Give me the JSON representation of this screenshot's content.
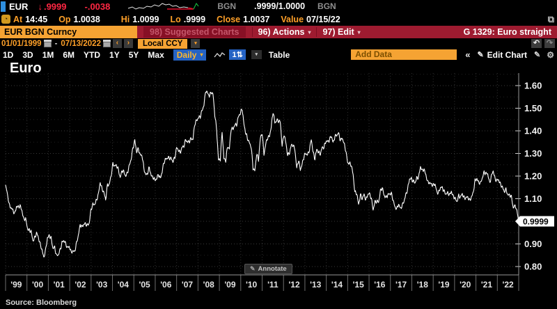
{
  "ticker": {
    "symbol": "EUR",
    "direction_arrow": "↓",
    "last": ".9999",
    "change": "-.0038",
    "feed": "BGN",
    "bid_ask": ".9999/1.0000",
    "feed2": "BGN",
    "at_label": "At",
    "time": "14:45",
    "open_label": "Op",
    "open": "1.0038",
    "high_label": "Hi",
    "high": "1.0099",
    "low_label": "Lo",
    "low": ".9999",
    "close_label": "Close",
    "close": "1.0037",
    "value_label": "Value",
    "value_date": "07/15/22"
  },
  "command_bar": {
    "security": "EUR BGN Curncy",
    "suggested_charts": "98) Suggested Charts",
    "actions": "96) Actions",
    "edit": "97) Edit",
    "chart_id": "G 1329: Euro straight"
  },
  "range_bar": {
    "start_date": "01/01/1999",
    "separator": "-",
    "end_date": "07/13/2022",
    "currency_mode": "Local CCY"
  },
  "toolbar": {
    "periods": [
      "1D",
      "3D",
      "1M",
      "6M",
      "YTD",
      "1Y",
      "5Y",
      "Max"
    ],
    "frequency": "Daily",
    "table_label": "Table",
    "add_data": "Add Data",
    "edit_chart": "Edit Chart"
  },
  "icons": {
    "caret_down": "▾",
    "prev": "‹",
    "next": "›",
    "undo": "↶",
    "redo": "↷",
    "collapse": "«",
    "pencil": "✎",
    "gear": "⚙",
    "export": "⧉",
    "updown": "1⇅",
    "alarm": "◔"
  },
  "chart": {
    "title": "Euro",
    "last_price_tag": "0.9999",
    "annotate_label": "Annotate",
    "source": "Source: Bloomberg"
  },
  "chart_data": {
    "type": "line",
    "title": "Euro",
    "x_start": "1999-01",
    "x_end": "2022-07",
    "x_tick_labels": [
      "'99",
      "'00",
      "'01",
      "'02",
      "'03",
      "'04",
      "'05",
      "'06",
      "'07",
      "'08",
      "'09",
      "'10",
      "'11",
      "'12",
      "'13",
      "'14",
      "'15",
      "'16",
      "'17",
      "'18",
      "'19",
      "'20",
      "'21",
      "'22"
    ],
    "y_ticks": [
      0.8,
      0.9,
      1.0,
      1.1,
      1.2,
      1.3,
      1.4,
      1.5,
      1.6
    ],
    "ylim": [
      0.78,
      1.655
    ],
    "grid": "dotted",
    "legend": "none",
    "line_color": "#ffffff",
    "background": "#000000",
    "last_value": 0.9999,
    "series": [
      {
        "name": "EUR BGN Curncy",
        "frequency_plotted": "monthly",
        "monthly_values": [
          1.16,
          1.12,
          1.077,
          1.06,
          1.044,
          1.035,
          1.07,
          1.06,
          1.065,
          1.052,
          1.01,
          1.007,
          0.97,
          0.964,
          0.955,
          0.91,
          0.93,
          0.952,
          0.925,
          0.898,
          0.88,
          0.838,
          0.868,
          0.93,
          0.94,
          0.922,
          0.879,
          0.89,
          0.848,
          0.847,
          0.876,
          0.91,
          0.912,
          0.898,
          0.888,
          0.89,
          0.859,
          0.868,
          0.872,
          0.901,
          0.934,
          0.989,
          0.978,
          0.982,
          0.988,
          0.987,
          0.992,
          1.049,
          1.078,
          1.079,
          1.09,
          1.118,
          1.177,
          1.143,
          1.123,
          1.098,
          1.165,
          1.16,
          1.199,
          1.259,
          1.246,
          1.242,
          1.229,
          1.198,
          1.222,
          1.215,
          1.203,
          1.218,
          1.242,
          1.274,
          1.33,
          1.356,
          1.303,
          1.324,
          1.296,
          1.287,
          1.233,
          1.21,
          1.212,
          1.233,
          1.204,
          1.2,
          1.179,
          1.184,
          1.213,
          1.191,
          1.212,
          1.262,
          1.28,
          1.278,
          1.276,
          1.282,
          1.267,
          1.276,
          1.325,
          1.32,
          1.302,
          1.323,
          1.336,
          1.365,
          1.345,
          1.352,
          1.371,
          1.363,
          1.427,
          1.448,
          1.463,
          1.459,
          1.487,
          1.519,
          1.579,
          1.562,
          1.555,
          1.576,
          1.56,
          1.467,
          1.409,
          1.273,
          1.27,
          1.397,
          1.281,
          1.268,
          1.326,
          1.324,
          1.415,
          1.403,
          1.425,
          1.433,
          1.464,
          1.472,
          1.501,
          1.433,
          1.386,
          1.363,
          1.351,
          1.33,
          1.23,
          1.224,
          1.305,
          1.268,
          1.363,
          1.395,
          1.298,
          1.338,
          1.369,
          1.381,
          1.416,
          1.481,
          1.439,
          1.45,
          1.44,
          1.437,
          1.339,
          1.385,
          1.344,
          1.296,
          1.306,
          1.333,
          1.334,
          1.324,
          1.236,
          1.266,
          1.23,
          1.257,
          1.286,
          1.296,
          1.298,
          1.319,
          1.358,
          1.305,
          1.282,
          1.317,
          1.3,
          1.301,
          1.33,
          1.322,
          1.353,
          1.358,
          1.359,
          1.374,
          1.349,
          1.38,
          1.377,
          1.387,
          1.363,
          1.369,
          1.339,
          1.313,
          1.263,
          1.253,
          1.245,
          1.21,
          1.129,
          1.119,
          1.073,
          1.122,
          1.098,
          1.114,
          1.098,
          1.121,
          1.118,
          1.1,
          1.056,
          1.086,
          1.083,
          1.087,
          1.138,
          1.145,
          1.113,
          1.11,
          1.117,
          1.116,
          1.124,
          1.098,
          1.059,
          1.052,
          1.08,
          1.058,
          1.065,
          1.09,
          1.124,
          1.142,
          1.184,
          1.191,
          1.181,
          1.165,
          1.19,
          1.2,
          1.241,
          1.219,
          1.232,
          1.208,
          1.169,
          1.168,
          1.169,
          1.16,
          1.16,
          1.131,
          1.132,
          1.147,
          1.145,
          1.137,
          1.122,
          1.121,
          1.117,
          1.137,
          1.108,
          1.098,
          1.09,
          1.115,
          1.102,
          1.121,
          1.109,
          1.103,
          1.103,
          1.095,
          1.11,
          1.123,
          1.178,
          1.193,
          1.172,
          1.164,
          1.193,
          1.222,
          1.208,
          1.207,
          1.173,
          1.202,
          1.219,
          1.186,
          1.187,
          1.181,
          1.158,
          1.156,
          1.134,
          1.137,
          1.115,
          1.122,
          1.107,
          1.054,
          1.073,
          1.048,
          0.9999
        ]
      }
    ]
  }
}
